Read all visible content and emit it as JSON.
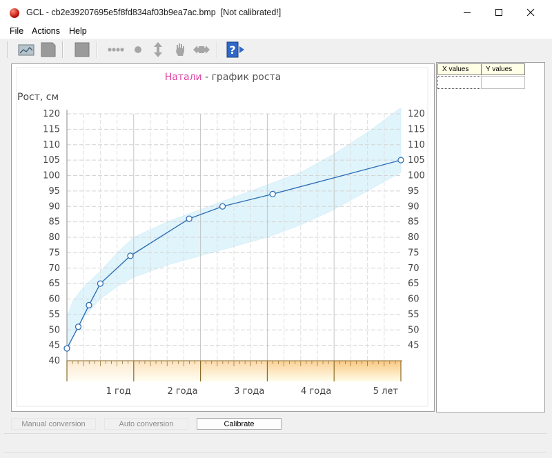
{
  "window": {
    "title": "GCL - cb2e39207695e5f8fd834af03b9ea7ac.bmp  [Not calibrated!]"
  },
  "menu": [
    "File",
    "Actions",
    "Help"
  ],
  "toolbar": {
    "icons": [
      "open-image-icon",
      "save-icon",
      "clear-icon",
      "line-tool-icon",
      "point-tool-icon",
      "vertical-tool-icon",
      "hand-tool-icon",
      "eraser-tool-icon",
      "help-icon"
    ]
  },
  "grid": {
    "headers": [
      "X values",
      "Y values"
    ]
  },
  "buttons": {
    "manual": "Manual conversion",
    "auto": "Auto conversion",
    "calibrate": "Calibrate"
  },
  "chart_data": {
    "type": "line",
    "title_name": "Натали",
    "title_rest": " - график роста",
    "ylabel": "Рост, см",
    "xlabel": "",
    "ylim": [
      40,
      120
    ],
    "xlim": [
      0,
      5
    ],
    "yticks": [
      40,
      45,
      50,
      55,
      60,
      65,
      70,
      75,
      80,
      85,
      90,
      95,
      100,
      105,
      110,
      115,
      120
    ],
    "yticks_right": [
      45,
      50,
      55,
      60,
      65,
      70,
      75,
      80,
      85,
      90,
      95,
      100,
      105,
      110,
      115,
      120
    ],
    "xticks": [
      {
        "x": 1,
        "label": "1 год"
      },
      {
        "x": 2,
        "label": "2 года"
      },
      {
        "x": 3,
        "label": "3 года"
      },
      {
        "x": 4,
        "label": "4 года"
      },
      {
        "x": 5,
        "label": "5 лет"
      }
    ],
    "grid": true,
    "series": [
      {
        "x": [
          0,
          0.17,
          0.33,
          0.5,
          0.95,
          1.83,
          2.33,
          3.08,
          5.0
        ],
        "values": [
          44,
          51,
          58,
          65,
          74,
          86,
          90,
          94,
          105
        ],
        "color": "#2f6fb5"
      }
    ],
    "band": {
      "x": [
        0,
        0.08,
        0.25,
        0.5,
        0.75,
        1.0,
        1.5,
        2.0,
        2.5,
        3.0,
        3.5,
        4.0,
        4.5,
        5.0
      ],
      "lower": [
        42,
        48,
        54,
        60,
        64,
        67,
        71,
        74,
        77,
        80,
        84,
        89,
        95,
        101
      ],
      "upper": [
        54,
        59,
        64,
        69,
        75,
        80,
        85,
        89,
        93,
        97,
        101,
        107,
        114,
        122
      ],
      "color": "#dff4fb"
    },
    "colors": {
      "title_name": "#e040a0",
      "title_rest": "#555555",
      "axis_text": "#444444",
      "age_band": [
        "#fffce0",
        "#f8b860"
      ]
    }
  }
}
